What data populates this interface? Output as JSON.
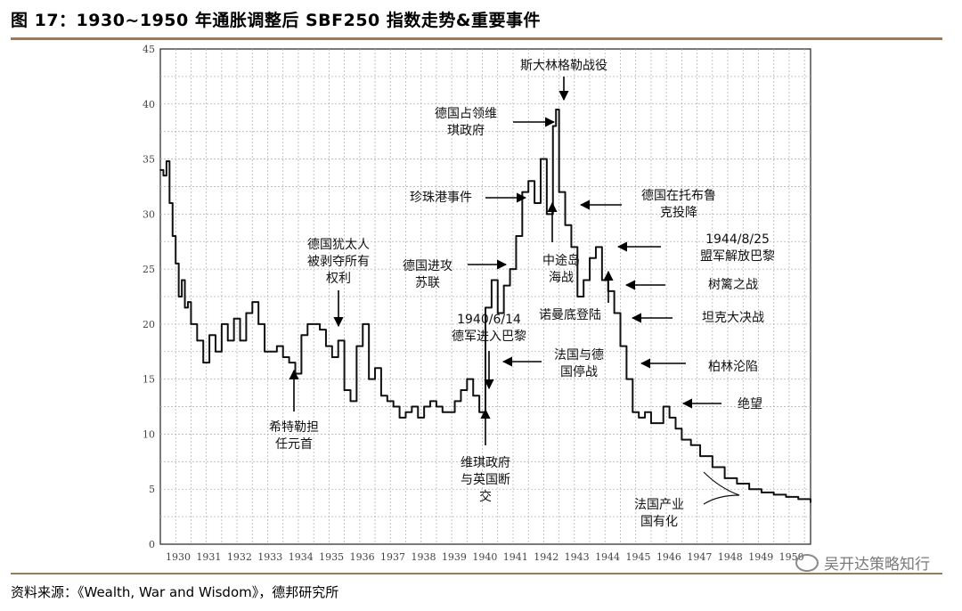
{
  "figure": {
    "title": "图 17：1930~1950 年通胀调整后 SBF250 指数走势&重要事件",
    "source": "资料来源：《Wealth, War and Wisdom》，德邦研究所",
    "watermark": "吴开达策略知行",
    "watermark_icon": "wechat-icon"
  },
  "chart_data": {
    "type": "line",
    "title": "1930~1950 年通胀调整后 SBF250 指数走势&重要事件",
    "xlabel": "",
    "ylabel": "",
    "xlim": [
      1930,
      1951.2
    ],
    "ylim": [
      0,
      45
    ],
    "grid": true,
    "legend": "none",
    "x_ticks": [
      "1930",
      "1931",
      "1932",
      "1933",
      "1934",
      "1935",
      "1936",
      "1937",
      "1938",
      "1939",
      "1940",
      "1941",
      "1942",
      "1943",
      "1944",
      "1945",
      "1946",
      "1947",
      "1948",
      "1949",
      "1950"
    ],
    "y_ticks": [
      "0",
      "5",
      "10",
      "15",
      "20",
      "25",
      "30",
      "35",
      "40",
      "45"
    ],
    "series": [
      {
        "name": "SBF250 (inflation-adjusted)",
        "x": [
          1930.0,
          1930.1,
          1930.2,
          1930.3,
          1930.4,
          1930.5,
          1930.6,
          1930.7,
          1930.8,
          1930.9,
          1931.0,
          1931.2,
          1931.4,
          1931.6,
          1931.8,
          1932.0,
          1932.2,
          1932.4,
          1932.6,
          1932.8,
          1933.0,
          1933.2,
          1933.4,
          1933.6,
          1933.8,
          1934.0,
          1934.2,
          1934.4,
          1934.6,
          1934.8,
          1935.0,
          1935.2,
          1935.4,
          1935.6,
          1935.8,
          1936.0,
          1936.2,
          1936.4,
          1936.6,
          1936.8,
          1937.0,
          1937.2,
          1937.4,
          1937.6,
          1937.8,
          1938.0,
          1938.2,
          1938.4,
          1938.6,
          1938.8,
          1939.0,
          1939.2,
          1939.4,
          1939.6,
          1939.8,
          1940.0,
          1940.2,
          1940.4,
          1940.6,
          1940.8,
          1941.0,
          1941.2,
          1941.4,
          1941.6,
          1941.8,
          1942.0,
          1942.2,
          1942.4,
          1942.6,
          1942.8,
          1942.9,
          1943.0,
          1943.2,
          1943.4,
          1943.6,
          1943.8,
          1944.0,
          1944.2,
          1944.4,
          1944.6,
          1944.8,
          1945.0,
          1945.2,
          1945.4,
          1945.6,
          1945.8,
          1946.0,
          1946.2,
          1946.4,
          1946.6,
          1946.8,
          1947.0,
          1947.3,
          1947.6,
          1948.0,
          1948.4,
          1948.8,
          1949.2,
          1949.6,
          1950.0,
          1950.4,
          1950.8,
          1951.2
        ],
        "values": [
          34,
          33.5,
          34.8,
          31,
          28,
          25.5,
          22.5,
          24,
          21.5,
          22,
          20,
          18.5,
          16.5,
          19,
          17.5,
          20,
          18.5,
          20.5,
          18.5,
          21,
          22,
          20,
          17.5,
          17.5,
          18,
          17,
          16.5,
          15.5,
          19,
          20,
          20,
          19.5,
          18,
          17,
          18.5,
          14,
          13,
          18,
          20,
          15,
          16,
          13.5,
          13,
          12.5,
          11.5,
          12,
          12.5,
          11.5,
          12.5,
          13,
          12.5,
          12,
          12,
          13,
          14,
          15,
          13.5,
          12,
          21.5,
          24,
          21,
          23.5,
          25,
          28,
          32,
          33,
          31,
          35,
          30,
          38,
          39.5,
          32,
          29,
          27,
          22.5,
          24,
          26,
          27,
          24,
          23,
          21,
          18,
          15,
          12,
          11.5,
          12,
          11,
          11,
          12.5,
          11.5,
          10.5,
          9.5,
          9,
          8,
          7,
          6,
          5.5,
          5,
          4.7,
          4.5,
          4.3,
          4.1,
          3.8
        ]
      }
    ],
    "annotations": [
      {
        "lines": [
          "斯大林格勒战役"
        ]
      },
      {
        "lines": [
          "德国占领维",
          "琪政府"
        ]
      },
      {
        "lines": [
          "珍珠港事件"
        ]
      },
      {
        "lines": [
          "德国在托布鲁",
          "克投降"
        ]
      },
      {
        "lines": [
          "德国犹太人",
          "被剥夺所有",
          "权利"
        ]
      },
      {
        "lines": [
          "德国进攻",
          "苏联"
        ]
      },
      {
        "lines": [
          "中途岛",
          "海战"
        ]
      },
      {
        "lines": [
          "1944/8/25",
          "盟军解放巴黎"
        ]
      },
      {
        "lines": [
          "树篱之战"
        ]
      },
      {
        "lines": [
          "诺曼底登陆"
        ]
      },
      {
        "lines": [
          "坦克大决战"
        ]
      },
      {
        "lines": [
          "1940/6/14",
          "德军进入巴黎"
        ]
      },
      {
        "lines": [
          "法国与德",
          "国停战"
        ]
      },
      {
        "lines": [
          "柏林沦陷"
        ]
      },
      {
        "lines": [
          "希特勒担",
          "任元首"
        ]
      },
      {
        "lines": [
          "绝望"
        ]
      },
      {
        "lines": [
          "维琪政府",
          "与英国断",
          "交"
        ]
      },
      {
        "lines": [
          "法国产业",
          "国有化"
        ]
      }
    ]
  }
}
